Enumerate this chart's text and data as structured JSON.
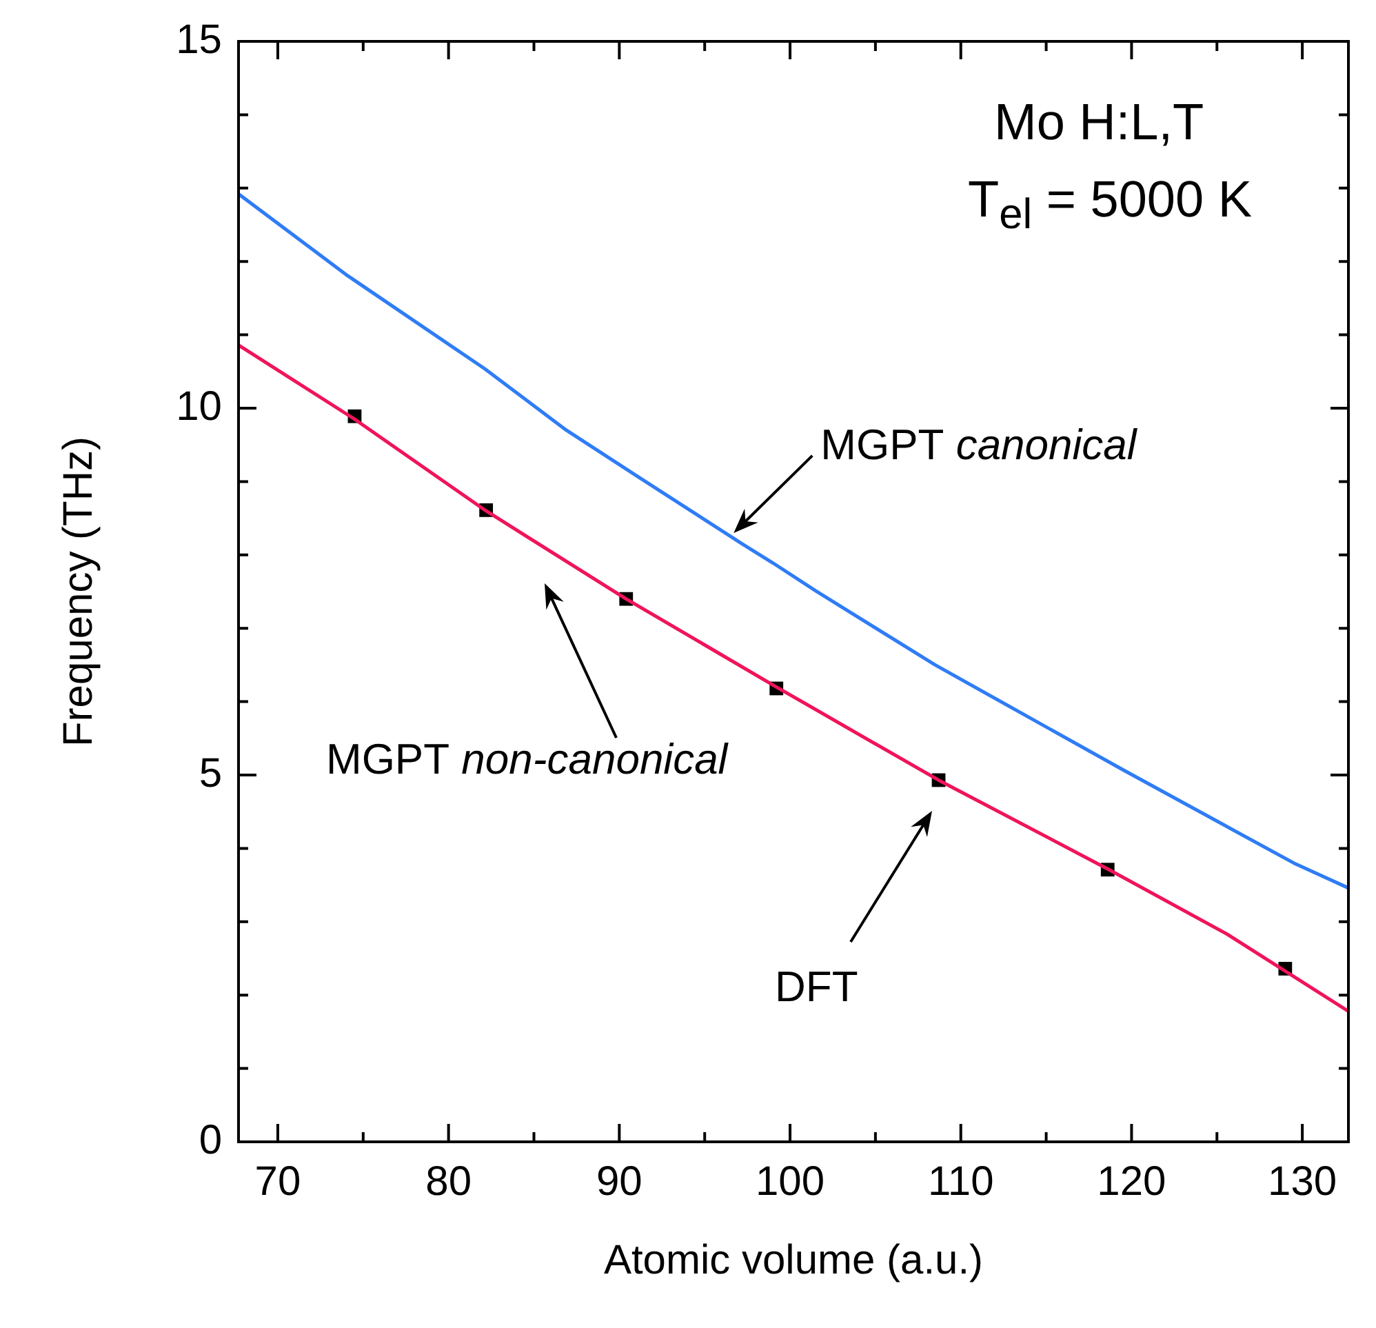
{
  "chart_data": {
    "type": "line",
    "xlabel": "Atomic volume (a.u.)",
    "ylabel": "Frequency (THz)",
    "xlim": [
      67.7,
      132.7
    ],
    "xticks": [
      70,
      {
        "value": 75,
        "label": null
      },
      80,
      {
        "value": 85,
        "label": null
      },
      90,
      {
        "value": 95,
        "label": null
      },
      100,
      {
        "value": 105,
        "label": null
      },
      110,
      {
        "value": 115,
        "label": null
      },
      120,
      {
        "value": 125,
        "label": null
      },
      130
    ],
    "ylim": [
      0,
      15
    ],
    "yticks": [
      0,
      {
        "value": 1,
        "label": null
      },
      {
        "value": 2,
        "label": null
      },
      {
        "value": 3,
        "label": null
      },
      {
        "value": 4,
        "label": null
      },
      5,
      {
        "value": 6,
        "label": null
      },
      {
        "value": 7,
        "label": null
      },
      {
        "value": 8,
        "label": null
      },
      {
        "value": 9,
        "label": null
      },
      10,
      {
        "value": 11,
        "label": null
      },
      {
        "value": 12,
        "label": null
      },
      {
        "value": 13,
        "label": null
      },
      {
        "value": 14,
        "label": null
      },
      15
    ],
    "grid": false,
    "legend": false,
    "series": [
      {
        "type": "line",
        "color": "#2f7cf6",
        "x": [
          67.7,
          74.0,
          82.1,
          86.9,
          91.0,
          97.2,
          99.0,
          101.5,
          108.5,
          119.5,
          129.5,
          132.7
        ],
        "values": [
          12.92,
          11.82,
          10.54,
          9.7,
          9.08,
          8.15,
          7.89,
          7.51,
          6.5,
          5.07,
          3.8,
          3.46
        ]
      },
      {
        "type": "line",
        "color": "#f0145a",
        "x": [
          67.7,
          74.5,
          82.2,
          90.4,
          99.2,
          108.7,
          118.6,
          125.6,
          132.7
        ],
        "values": [
          10.86,
          9.85,
          8.6,
          7.4,
          6.2,
          4.93,
          3.72,
          2.83,
          1.78
        ]
      },
      {
        "type": "scatter",
        "marker": "square",
        "color": "#000000",
        "x": [
          74.5,
          82.2,
          90.4,
          99.2,
          108.7,
          118.6,
          129.0
        ],
        "values": [
          9.89,
          8.61,
          7.4,
          6.18,
          4.93,
          3.71,
          2.36
        ]
      }
    ],
    "annotations": [
      "Mo  H:L,T",
      "T$_{el}$ = 5000 K",
      {
        "text": "MGPT canonical",
        "x": 96.7,
        "y": 8.3
      },
      "MGPT non-canonical",
      "DFT"
    ]
  }
}
